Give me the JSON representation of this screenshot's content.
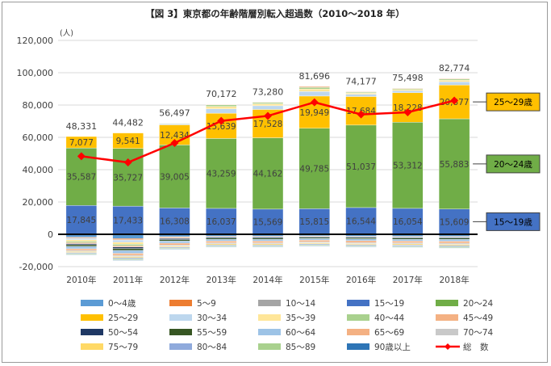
{
  "chart_data": {
    "type": "bar",
    "stacked": true,
    "title": "【図 3】東京都の年齢階層別転入超過数（2010～2018 年）",
    "y_unit": "(人)",
    "ylim": [
      -20000,
      120000
    ],
    "y_ticks": [
      -20000,
      0,
      20000,
      40000,
      60000,
      80000,
      100000,
      120000
    ],
    "y_tick_labels": [
      "-20,000",
      "0",
      "20,000",
      "40,000",
      "60,000",
      "80,000",
      "100,000",
      "120,000"
    ],
    "categories": [
      "2010年",
      "2011年",
      "2012年",
      "2013年",
      "2014年",
      "2015年",
      "2016年",
      "2017年",
      "2018年"
    ],
    "series": [
      {
        "name": "0～4歳",
        "color": "#5b9bd5",
        "values": [
          -1800,
          -2600,
          -1500,
          -1200,
          -1200,
          -1000,
          -1100,
          -1300,
          -1300
        ]
      },
      {
        "name": "5～9",
        "color": "#ed7d31",
        "values": [
          -500,
          -700,
          -400,
          -300,
          -300,
          -300,
          -300,
          -300,
          -300
        ]
      },
      {
        "name": "10～14",
        "color": "#a5a5a5",
        "values": [
          -300,
          -400,
          -300,
          -200,
          -200,
          -200,
          -200,
          -200,
          -200
        ]
      },
      {
        "name": "15～19",
        "color": "#4472c4",
        "values": [
          17845,
          17433,
          16308,
          16037,
          15569,
          15815,
          16544,
          16054,
          15609
        ]
      },
      {
        "name": "20～24",
        "color": "#70ad47",
        "values": [
          35587,
          35727,
          39005,
          43259,
          44162,
          49785,
          51037,
          53312,
          55883
        ]
      },
      {
        "name": "25～29",
        "color": "#ffc000",
        "values": [
          7077,
          9541,
          12434,
          15639,
          17528,
          19949,
          17684,
          18228,
          20877
        ]
      },
      {
        "name": "30～34",
        "color": "#bdd7ee",
        "values": [
          -800,
          -1200,
          600,
          2700,
          2300,
          2800,
          1400,
          1300,
          2000
        ]
      },
      {
        "name": "35～39",
        "color": "#ffe699",
        "values": [
          -1000,
          -1300,
          300,
          1500,
          1200,
          1500,
          700,
          700,
          1000
        ]
      },
      {
        "name": "40～44",
        "color": "#a9d18e",
        "values": [
          -700,
          -900,
          200,
          1000,
          800,
          1100,
          600,
          600,
          700
        ]
      },
      {
        "name": "45～49",
        "color": "#f4b183",
        "values": [
          -700,
          -800,
          -400,
          300,
          300,
          600,
          300,
          300,
          400
        ]
      },
      {
        "name": "50～54",
        "color": "#1f3864",
        "values": [
          -700,
          -900,
          -700,
          -600,
          -600,
          -500,
          -500,
          -500,
          -500
        ]
      },
      {
        "name": "55～59",
        "color": "#375623",
        "values": [
          -1000,
          -1200,
          -900,
          -800,
          -800,
          -700,
          -800,
          -800,
          -800
        ]
      },
      {
        "name": "60～64",
        "color": "#9dc3e6",
        "values": [
          -1500,
          -1800,
          -1300,
          -1100,
          -1100,
          -1000,
          -1100,
          -1100,
          -1200
        ]
      },
      {
        "name": "65～69",
        "color": "#f4b183",
        "values": [
          -1000,
          -1200,
          -1100,
          -1100,
          -1100,
          -1000,
          -1100,
          -1100,
          -1200
        ]
      },
      {
        "name": "70～74",
        "color": "#c9c9c9",
        "values": [
          -700,
          -800,
          -700,
          -700,
          -700,
          -600,
          -700,
          -700,
          -800
        ]
      },
      {
        "name": "75～79",
        "color": "#ffd966",
        "values": [
          -600,
          -700,
          -600,
          -600,
          -600,
          -600,
          -600,
          -700,
          -700
        ]
      },
      {
        "name": "80～84",
        "color": "#8faadc",
        "values": [
          -600,
          -700,
          -600,
          -600,
          -600,
          -600,
          -600,
          -600,
          -700
        ]
      },
      {
        "name": "85～89",
        "color": "#a9d18e",
        "values": [
          -500,
          -600,
          -500,
          -500,
          -500,
          -500,
          -500,
          -500,
          -600
        ]
      },
      {
        "name": "90歳以上",
        "color": "#2e75b6",
        "values": [
          -300,
          -400,
          -300,
          -300,
          -300,
          -300,
          -300,
          -300,
          -300
        ]
      }
    ],
    "total": {
      "name": "総　数",
      "color": "#ff0000",
      "values": [
        48331,
        44482,
        56497,
        70172,
        73280,
        81696,
        74177,
        75498,
        82774
      ],
      "labels": [
        "48,331",
        "44,482",
        "56,497",
        "70,172",
        "73,280",
        "81,696",
        "74,177",
        "75,498",
        "82,774"
      ]
    },
    "labeled_series": [
      "15～19",
      "20～24",
      "25～29"
    ],
    "segment_labels": {
      "15～19": [
        "17,845",
        "17,433",
        "16,308",
        "16,037",
        "15,569",
        "15,815",
        "16,544",
        "16,054",
        "15,609"
      ],
      "20～24": [
        "35,587",
        "35,727",
        "39,005",
        "43,259",
        "44,162",
        "49,785",
        "51,037",
        "53,312",
        "55,883"
      ],
      "25～29": [
        "7,077",
        "9,541",
        "12,434",
        "15,639",
        "17,528",
        "19,949",
        "17,684",
        "18,228",
        "20,877"
      ]
    },
    "callouts": [
      {
        "label": "25～29歳",
        "series": "25～29",
        "fill": "#ffc000",
        "text_color": "#000000"
      },
      {
        "label": "20～24歳",
        "series": "20～24",
        "fill": "#70ad47",
        "text_color": "#000000"
      },
      {
        "label": "15～19歳",
        "series": "15～19",
        "fill": "#4472c4",
        "text_color": "#000000"
      }
    ],
    "legend_position": "bottom",
    "grid": true
  }
}
